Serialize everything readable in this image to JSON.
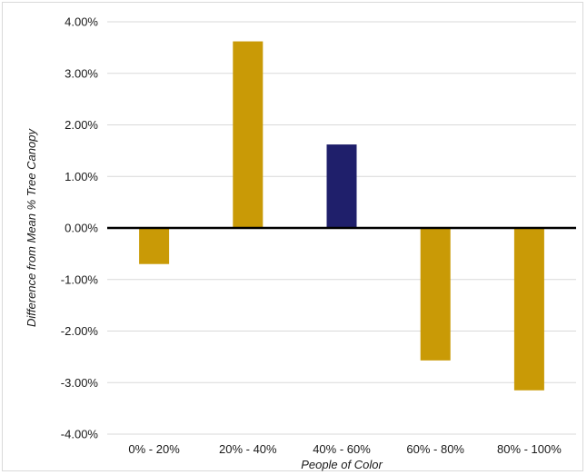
{
  "chart_data": {
    "type": "bar",
    "title": "",
    "xlabel": "People of Color",
    "ylabel": "Difference from Mean % Tree Canopy",
    "categories": [
      "0% - 20%",
      "20% - 40%",
      "40% - 60%",
      "60% - 80%",
      "80% - 100%"
    ],
    "values": [
      -0.7,
      3.62,
      1.62,
      -2.57,
      -3.15
    ],
    "unit": "%",
    "ylim": [
      -4,
      4
    ],
    "yticks": [
      4,
      3,
      2,
      1,
      0,
      -1,
      -2,
      -3,
      -4
    ],
    "ytick_labels": [
      "4.00%",
      "3.00%",
      "2.00%",
      "1.00%",
      "0.00%",
      "-1.00%",
      "-2.00%",
      "-3.00%",
      "-4.00%"
    ],
    "grid": true,
    "legend": "none",
    "colors": {
      "default_bar": "#c99a06",
      "highlight_bar": "#1f1f6b",
      "highlight_index": 2,
      "gridline": "#d9d9d9",
      "zero_line": "#000000"
    }
  }
}
